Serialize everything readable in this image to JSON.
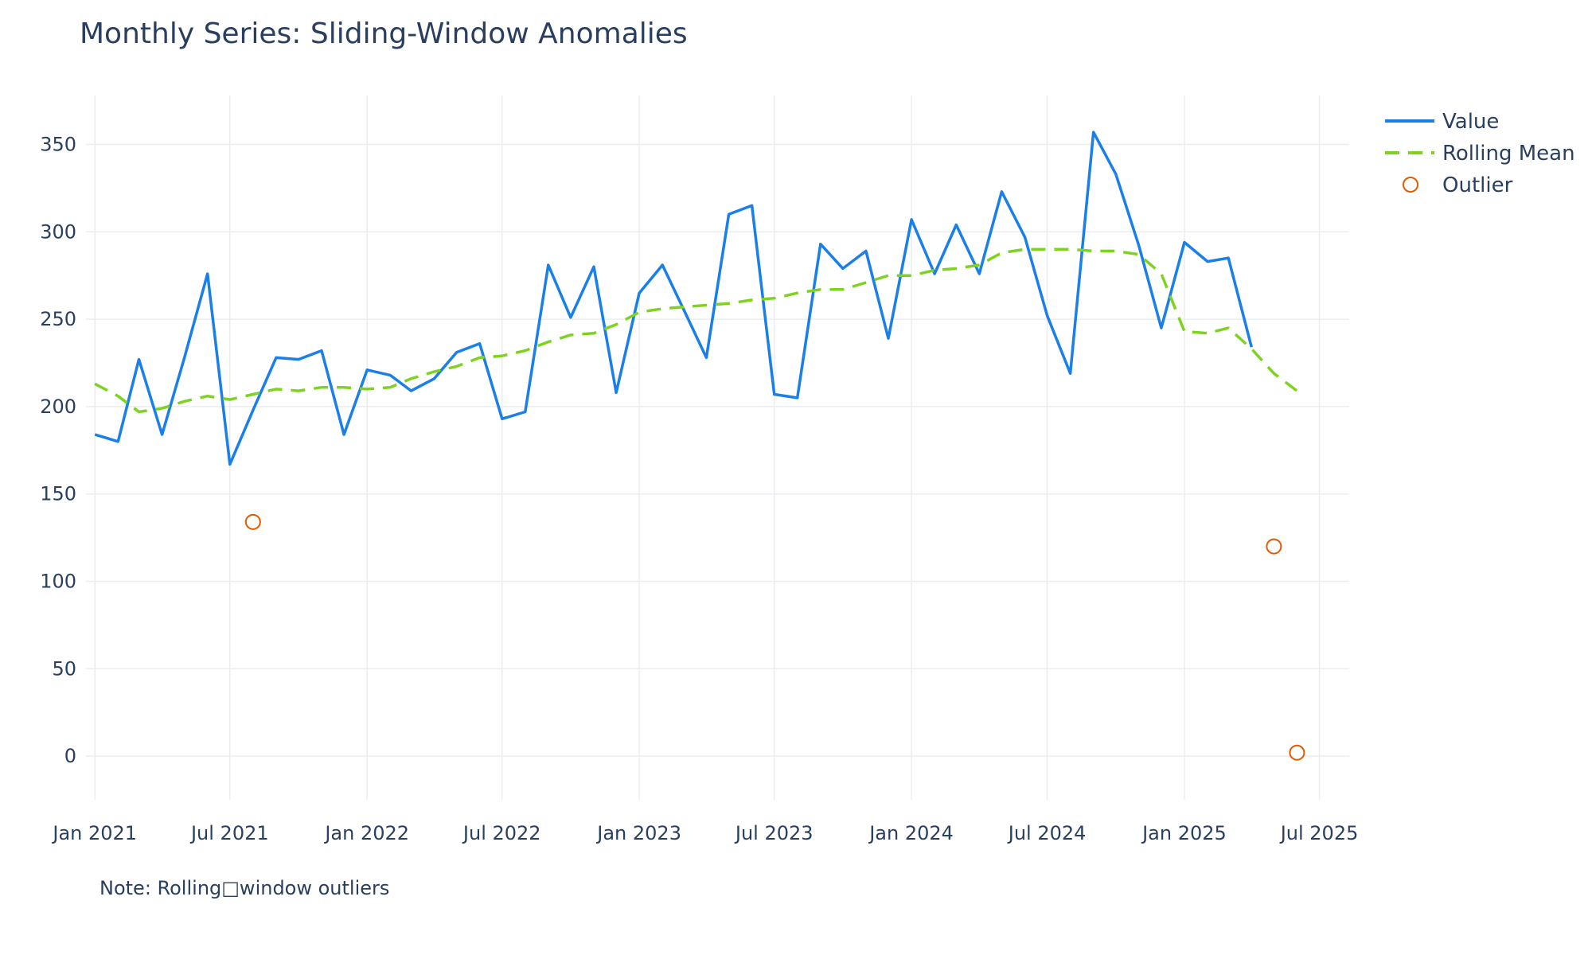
{
  "chart_data": {
    "type": "line",
    "title": "Monthly Series: Sliding-Window Anomalies",
    "note": "Note: Rolling□window outliers",
    "xlabel": "",
    "ylabel": "",
    "x_range": [
      "2020-12-20",
      "2025-08-10"
    ],
    "ylim": [
      -25,
      378
    ],
    "grid": true,
    "legend_position": "top-right",
    "x_ticks": [
      {
        "date": "2021-01-01",
        "label": "Jan 2021"
      },
      {
        "date": "2021-07-01",
        "label": "Jul 2021"
      },
      {
        "date": "2022-01-01",
        "label": "Jan 2022"
      },
      {
        "date": "2022-07-01",
        "label": "Jul 2022"
      },
      {
        "date": "2023-01-01",
        "label": "Jan 2023"
      },
      {
        "date": "2023-07-01",
        "label": "Jul 2023"
      },
      {
        "date": "2024-01-01",
        "label": "Jan 2024"
      },
      {
        "date": "2024-07-01",
        "label": "Jul 2024"
      },
      {
        "date": "2025-01-01",
        "label": "Jan 2025"
      },
      {
        "date": "2025-07-01",
        "label": "Jul 2025"
      }
    ],
    "y_ticks": [
      0,
      50,
      100,
      150,
      200,
      250,
      300,
      350
    ],
    "x": [
      "2021-01-01",
      "2021-02-01",
      "2021-03-01",
      "2021-04-01",
      "2021-05-01",
      "2021-06-01",
      "2021-07-01",
      "2021-08-01",
      "2021-09-01",
      "2021-10-01",
      "2021-11-01",
      "2021-12-01",
      "2022-01-01",
      "2022-02-01",
      "2022-03-01",
      "2022-04-01",
      "2022-05-01",
      "2022-06-01",
      "2022-07-01",
      "2022-08-01",
      "2022-09-01",
      "2022-10-01",
      "2022-11-01",
      "2022-12-01",
      "2023-01-01",
      "2023-02-01",
      "2023-03-01",
      "2023-04-01",
      "2023-05-01",
      "2023-06-01",
      "2023-07-01",
      "2023-08-01",
      "2023-09-01",
      "2023-10-01",
      "2023-11-01",
      "2023-12-01",
      "2024-01-01",
      "2024-02-01",
      "2024-03-01",
      "2024-04-01",
      "2024-05-01",
      "2024-06-01",
      "2024-07-01",
      "2024-08-01",
      "2024-09-01",
      "2024-10-01",
      "2024-11-01",
      "2024-12-01",
      "2025-01-01",
      "2025-02-01",
      "2025-03-01",
      "2025-04-01",
      "2025-05-01",
      "2025-06-01"
    ],
    "series": [
      {
        "name": "Value",
        "color": "#1a7fe8",
        "style": "solid",
        "values": [
          184,
          180,
          227,
          184,
          228,
          276,
          167,
          198,
          228,
          227,
          232,
          184,
          221,
          218,
          209,
          216,
          231,
          236,
          193,
          197,
          281,
          251,
          280,
          208,
          265,
          281,
          256,
          228,
          310,
          315,
          207,
          205,
          293,
          279,
          289,
          239,
          307,
          276,
          304,
          276,
          323,
          297,
          252,
          219,
          357,
          333,
          292,
          245,
          294,
          283,
          285,
          234,
          null,
          null
        ]
      },
      {
        "name": "Rolling Mean",
        "color": "#7ed321",
        "style": "dash",
        "values": [
          213,
          206,
          197,
          199,
          203,
          206,
          204,
          207,
          210,
          209,
          211,
          211,
          210,
          211,
          216,
          220,
          223,
          228,
          229,
          232,
          237,
          241,
          242,
          247,
          254,
          256,
          257,
          258,
          259,
          261,
          262,
          265,
          267,
          267,
          271,
          275,
          275,
          278,
          279,
          281,
          288,
          290,
          290,
          290,
          289,
          289,
          287,
          276,
          243,
          242,
          245,
          233,
          219,
          209
        ]
      },
      {
        "name": "Outlier",
        "color": "#e05a00",
        "style": "marker-open-circle",
        "points": [
          {
            "x": "2021-08-01",
            "y": 134
          },
          {
            "x": "2025-05-01",
            "y": 120
          },
          {
            "x": "2025-06-01",
            "y": 2
          }
        ]
      }
    ]
  }
}
